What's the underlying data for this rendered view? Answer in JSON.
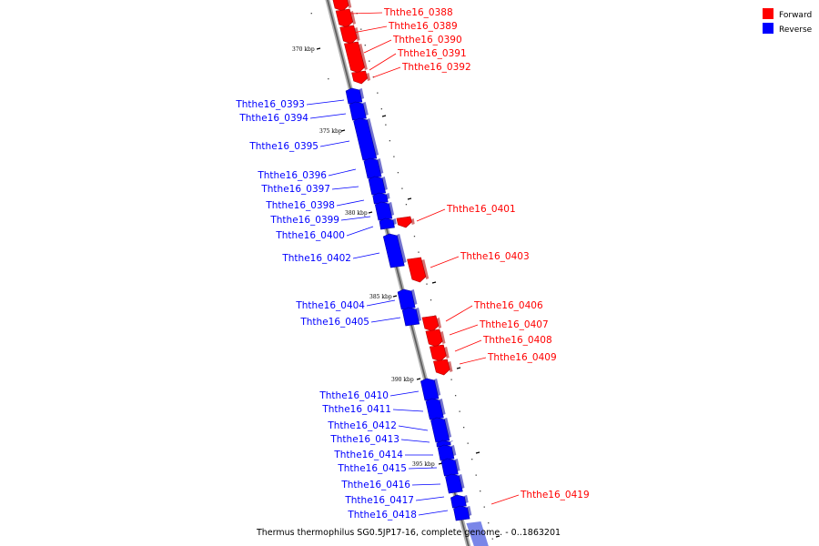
{
  "colors": {
    "forward": "#ff0000",
    "reverse": "#0000ff",
    "axis": "#888888"
  },
  "legend": [
    {
      "key": "forward",
      "label": "Forward"
    },
    {
      "key": "reverse",
      "label": "Reverse"
    }
  ],
  "caption": "Thermus thermophilus SG0.5JP17-16, complete genome. - 0..1863201",
  "tick_labels": [
    "370 kbp",
    "375 kbp",
    "380 kbp",
    "385 kbp",
    "390 kbp",
    "395 kbp"
  ],
  "genes": [
    {
      "id": "Ththe16_0388",
      "strand": "forward"
    },
    {
      "id": "Ththe16_0389",
      "strand": "forward"
    },
    {
      "id": "Ththe16_0390",
      "strand": "forward"
    },
    {
      "id": "Ththe16_0391",
      "strand": "forward"
    },
    {
      "id": "Ththe16_0392",
      "strand": "forward"
    },
    {
      "id": "Ththe16_0393",
      "strand": "reverse"
    },
    {
      "id": "Ththe16_0394",
      "strand": "reverse"
    },
    {
      "id": "Ththe16_0395",
      "strand": "reverse"
    },
    {
      "id": "Ththe16_0396",
      "strand": "reverse"
    },
    {
      "id": "Ththe16_0397",
      "strand": "reverse"
    },
    {
      "id": "Ththe16_0398",
      "strand": "reverse"
    },
    {
      "id": "Ththe16_0399",
      "strand": "reverse"
    },
    {
      "id": "Ththe16_0400",
      "strand": "reverse"
    },
    {
      "id": "Ththe16_0401",
      "strand": "forward"
    },
    {
      "id": "Ththe16_0402",
      "strand": "reverse"
    },
    {
      "id": "Ththe16_0403",
      "strand": "forward"
    },
    {
      "id": "Ththe16_0404",
      "strand": "reverse"
    },
    {
      "id": "Ththe16_0405",
      "strand": "reverse"
    },
    {
      "id": "Ththe16_0406",
      "strand": "forward"
    },
    {
      "id": "Ththe16_0407",
      "strand": "forward"
    },
    {
      "id": "Ththe16_0408",
      "strand": "forward"
    },
    {
      "id": "Ththe16_0409",
      "strand": "forward"
    },
    {
      "id": "Ththe16_0410",
      "strand": "reverse"
    },
    {
      "id": "Ththe16_0411",
      "strand": "reverse"
    },
    {
      "id": "Ththe16_0412",
      "strand": "reverse"
    },
    {
      "id": "Ththe16_0413",
      "strand": "reverse"
    },
    {
      "id": "Ththe16_0414",
      "strand": "reverse"
    },
    {
      "id": "Ththe16_0415",
      "strand": "reverse"
    },
    {
      "id": "Ththe16_0416",
      "strand": "reverse"
    },
    {
      "id": "Ththe16_0417",
      "strand": "reverse"
    },
    {
      "id": "Ththe16_0418",
      "strand": "reverse"
    },
    {
      "id": "Ththe16_0419",
      "strand": "forward"
    }
  ]
}
